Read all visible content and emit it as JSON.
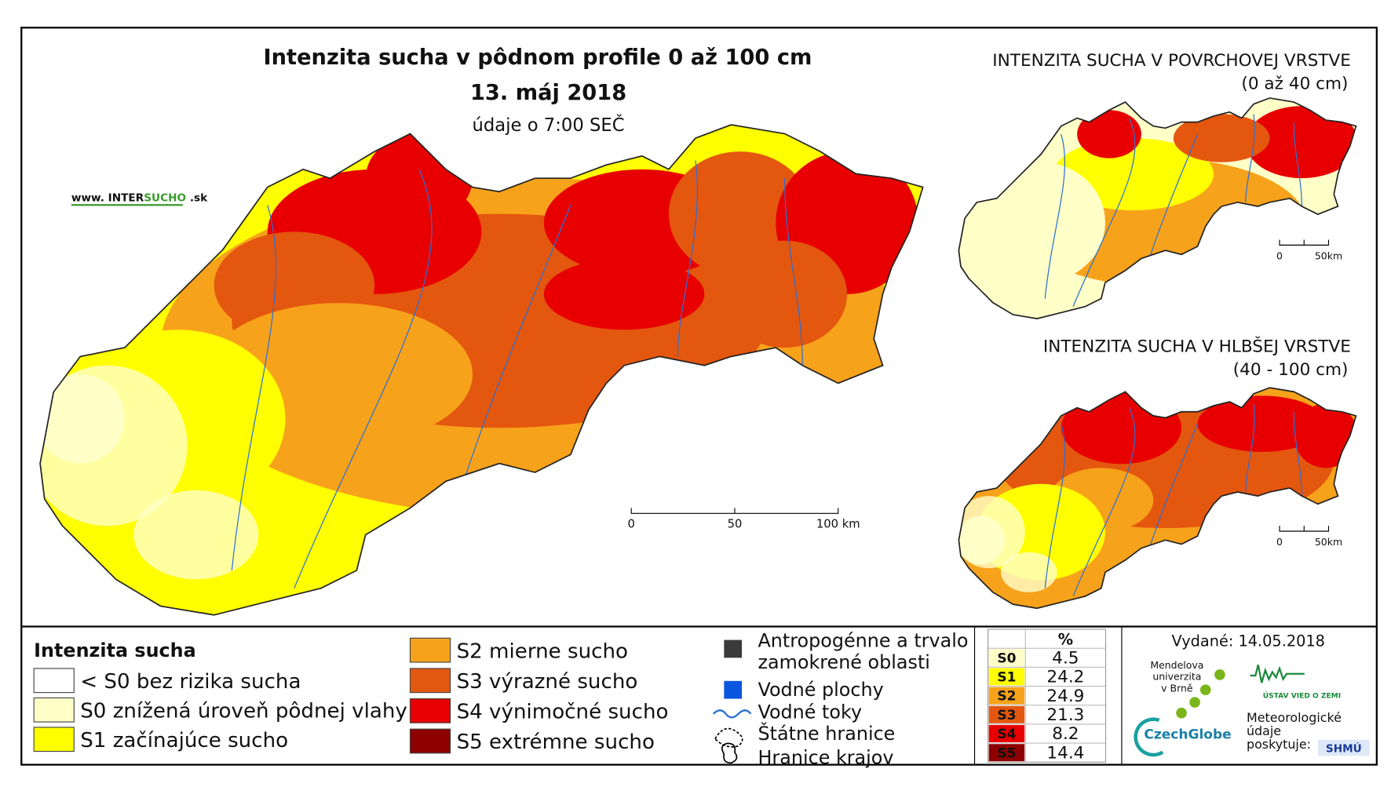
{
  "header": {
    "title": "Intenzita sucha v pôdnom profile 0 až 100 cm",
    "date": "13. máj 2018",
    "subtitle": "údaje o 7:00 SEČ",
    "website_prefix": "www. INTER",
    "website_highlight": "SUCHO",
    "website_suffix": " .sk"
  },
  "main_scale": [
    "0",
    "50",
    "100 km"
  ],
  "insets": [
    {
      "title": "INTENZITA SUCHA V POVRCHOVEJ VRSTVE",
      "depth": "(0 až 40 cm)",
      "scale": [
        "0",
        "50km"
      ]
    },
    {
      "title": "INTENZITA SUCHA V HLBŠEJ VRSTVE",
      "depth": "(40 - 100 cm)",
      "scale": [
        "0",
        "50km"
      ]
    }
  ],
  "legend": {
    "title": "Intenzita sucha",
    "items": [
      {
        "label": "< S0 bez rizika sucha",
        "color": "#ffffff"
      },
      {
        "label": "S0 znížená úroveň pôdnej vlahy",
        "color": "#ffffc8"
      },
      {
        "label": "S1 začínajúce sucho",
        "color": "#ffff00"
      },
      {
        "label": "S2 mierne sucho",
        "color": "#f7a21b"
      },
      {
        "label": "S3 výrazné sucho",
        "color": "#e4570f"
      },
      {
        "label": "S4 výnimočné sucho",
        "color": "#e80000"
      },
      {
        "label": "S5 extrémne sucho",
        "color": "#8e0000"
      }
    ]
  },
  "layers": [
    {
      "lines": [
        "Antropogénne a trvalo",
        "zamokrené oblasti"
      ],
      "color": "#3a3a3a"
    },
    {
      "lines": [
        "Vodné plochy"
      ],
      "color": "#0a55e0"
    },
    {
      "lines": [
        "Vodné toky"
      ],
      "color": "#2a6fd6"
    },
    {
      "lines": [
        "Štátne hranice"
      ]
    },
    {
      "lines": [
        "Hranice krajov"
      ]
    }
  ],
  "stats": {
    "header": "%",
    "rows": [
      {
        "class": "S0",
        "value": 4.5,
        "color": "#ffffc8"
      },
      {
        "class": "S1",
        "value": 24.2,
        "color": "#ffff00"
      },
      {
        "class": "S2",
        "value": 24.9,
        "color": "#f7a21b"
      },
      {
        "class": "S3",
        "value": 21.3,
        "color": "#e4570f"
      },
      {
        "class": "S4",
        "value": 8.2,
        "color": "#e80000"
      },
      {
        "class": "S5",
        "value": 14.4,
        "color": "#8e0000"
      }
    ]
  },
  "credits": {
    "issued": "Vydané: 14.05.2018",
    "mendel": [
      "Mendelova",
      "univerzita",
      "v Brně"
    ],
    "czechglobe": "CzechGlobe",
    "ustav": "ÚSTAV VIED O ZEMI",
    "meteo": [
      "Meteorologické",
      "údaje",
      "poskytuje:"
    ],
    "shmu": "SHMÚ"
  }
}
